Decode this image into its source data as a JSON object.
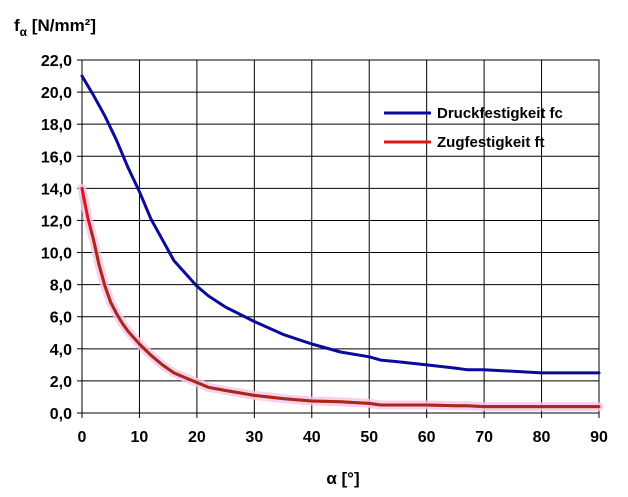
{
  "chart_data": {
    "type": "line",
    "ylabel": "f",
    "ylabel_sub": "α",
    "ylabel_unit": " [N/mm²]",
    "xlabel": "α [°]",
    "xlim": [
      0,
      90
    ],
    "ylim": [
      0,
      22
    ],
    "xticks": [
      0,
      10,
      20,
      30,
      40,
      50,
      60,
      70,
      80,
      90
    ],
    "xtick_labels": [
      "0",
      "10",
      "20",
      "30",
      "40",
      "50",
      "60",
      "70",
      "80",
      "90"
    ],
    "yticks": [
      0,
      2,
      4,
      6,
      8,
      10,
      12,
      14,
      16,
      18,
      20,
      22
    ],
    "ytick_labels": [
      "0,0",
      "2,0",
      "4,0",
      "6,0",
      "8,0",
      "10,0",
      "12,0",
      "14,0",
      "16,0",
      "18,0",
      "20,0",
      "22,0"
    ],
    "grid": true,
    "legend_position": "top-right",
    "series": [
      {
        "name": "Druckfestigkeit fc",
        "color": "#0a0a9c",
        "x": [
          0,
          2,
          4,
          6,
          8,
          10,
          12,
          14,
          16,
          18,
          20,
          22,
          25,
          30,
          35,
          40,
          45,
          50,
          52,
          55,
          60,
          65,
          67,
          70,
          75,
          80,
          85,
          90
        ],
        "y": [
          21.0,
          19.8,
          18.5,
          17.0,
          15.3,
          13.8,
          12.1,
          10.8,
          9.5,
          8.7,
          7.9,
          7.3,
          6.6,
          5.7,
          4.9,
          4.3,
          3.8,
          3.5,
          3.3,
          3.2,
          3.0,
          2.8,
          2.7,
          2.7,
          2.6,
          2.5,
          2.5,
          2.5
        ]
      },
      {
        "name": "Zugfestigkeit ft",
        "color": "#e01414",
        "x": [
          0,
          1,
          2,
          3,
          4,
          5,
          6,
          7,
          8,
          9,
          10,
          12,
          14,
          16,
          18,
          20,
          22,
          25,
          30,
          35,
          40,
          45,
          50,
          52,
          55,
          60,
          65,
          67,
          70,
          75,
          80,
          85,
          90
        ],
        "y": [
          14.0,
          12.2,
          10.8,
          9.2,
          7.9,
          6.9,
          6.2,
          5.6,
          5.1,
          4.7,
          4.3,
          3.6,
          3.0,
          2.5,
          2.2,
          1.9,
          1.6,
          1.4,
          1.1,
          0.9,
          0.75,
          0.7,
          0.6,
          0.5,
          0.5,
          0.5,
          0.45,
          0.45,
          0.4,
          0.4,
          0.4,
          0.4,
          0.4
        ]
      }
    ]
  }
}
